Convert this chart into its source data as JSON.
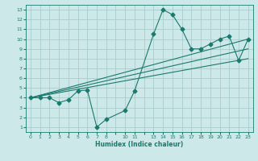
{
  "xlabel": "Humidex (Indice chaleur)",
  "bg_color": "#cce8e8",
  "grid_color": "#aacccc",
  "line_color": "#1a7a6e",
  "line1_x": [
    0,
    1,
    2,
    3,
    4,
    5,
    6,
    7,
    8,
    10,
    11,
    13,
    14,
    15,
    16,
    17,
    18,
    19,
    20,
    21,
    22,
    23
  ],
  "line1_y": [
    4,
    4,
    4,
    3.5,
    3.8,
    4.7,
    4.8,
    1.0,
    1.8,
    2.7,
    4.7,
    10.5,
    13.0,
    12.5,
    11.0,
    9.0,
    9.0,
    9.5,
    10.0,
    10.3,
    7.8,
    10.0
  ],
  "line2_x": [
    0,
    23
  ],
  "line2_y": [
    4.0,
    10.0
  ],
  "line3_x": [
    0,
    23
  ],
  "line3_y": [
    4.0,
    9.0
  ],
  "line4_x": [
    0,
    23
  ],
  "line4_y": [
    4.0,
    8.0
  ],
  "xtick_positions": [
    0,
    1,
    2,
    3,
    4,
    5,
    6,
    7,
    8,
    9,
    10,
    11,
    12,
    13,
    14,
    15,
    16,
    17,
    18,
    19,
    20,
    21,
    22,
    23
  ],
  "xtick_labels": [
    "0",
    "1",
    "2",
    "3",
    "4",
    "5",
    "6",
    "7",
    "8",
    "",
    "10",
    "11",
    "",
    "13",
    "14",
    "15",
    "16",
    "17",
    "18",
    "19",
    "20",
    "21",
    "22",
    "23"
  ],
  "yticks": [
    1,
    2,
    3,
    4,
    5,
    6,
    7,
    8,
    9,
    10,
    11,
    12,
    13
  ],
  "xlim": [
    -0.5,
    23.5
  ],
  "ylim": [
    0.5,
    13.5
  ]
}
